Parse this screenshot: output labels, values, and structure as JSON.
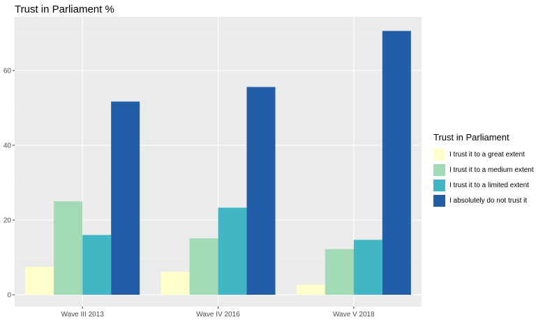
{
  "chart_data": {
    "type": "bar",
    "title": "Trust in Parliament %",
    "xlabel": "",
    "ylabel": "",
    "categories": [
      "Wave III 2013",
      "Wave IV 2016",
      "Wave V 2018"
    ],
    "ylim": [
      0,
      72
    ],
    "yticks": [
      0,
      20,
      40,
      60
    ],
    "legend_title": "Trust in Parliament",
    "legend_position": "right",
    "grid": true,
    "series": [
      {
        "name": "I trust it to a great extent",
        "color": "#ffffcc",
        "values": [
          7.5,
          6.2,
          2.7
        ]
      },
      {
        "name": "I trust it to a medium extent",
        "color": "#a1dab4",
        "values": [
          25.0,
          15.1,
          12.2
        ]
      },
      {
        "name": "I trust it to a limited extent",
        "color": "#41b6c4",
        "values": [
          16.0,
          23.3,
          14.7
        ]
      },
      {
        "name": "I absolutely do not trust it",
        "color": "#225ea8",
        "values": [
          51.7,
          55.6,
          70.6
        ]
      }
    ]
  }
}
